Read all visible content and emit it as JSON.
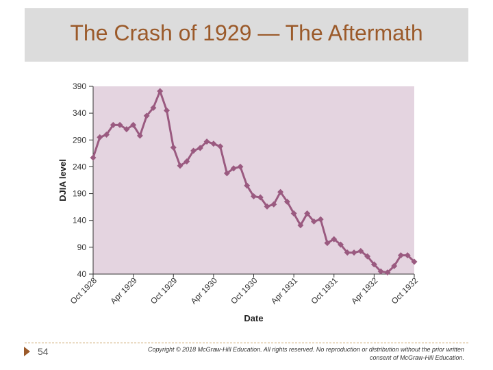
{
  "slide": {
    "title": "The Crash of 1929 — The Aftermath",
    "page_number": "54",
    "copyright": "Copyright © 2018 McGraw-Hill Education. All rights reserved. No reproduction or distribution without the prior written consent of McGraw-Hill Education."
  },
  "colors": {
    "plot_background": "#e4d4e0",
    "line": "#9a5a80",
    "title": "#9b5a2a"
  },
  "chart_data": {
    "type": "line",
    "title": "",
    "xlabel": "Date",
    "ylabel": "DJIA level",
    "ylim": [
      40,
      390
    ],
    "yticks": [
      40,
      90,
      140,
      190,
      240,
      290,
      340,
      390
    ],
    "xtick_labels": [
      "Oct 1928",
      "Apr 1929",
      "Oct 1929",
      "Apr 1930",
      "Oct 1930",
      "Apr 1931",
      "Oct 1931",
      "Apr 1932",
      "Oct 1932"
    ],
    "grid": false,
    "values": [
      257,
      295,
      300,
      318,
      318,
      310,
      318,
      298,
      335,
      350,
      381,
      345,
      276,
      242,
      250,
      270,
      275,
      287,
      283,
      278,
      228,
      237,
      240,
      205,
      185,
      183,
      166,
      170,
      193,
      175,
      153,
      131,
      153,
      138,
      142,
      98,
      105,
      95,
      80,
      80,
      83,
      73,
      58,
      45,
      43,
      55,
      75,
      75,
      63
    ]
  }
}
